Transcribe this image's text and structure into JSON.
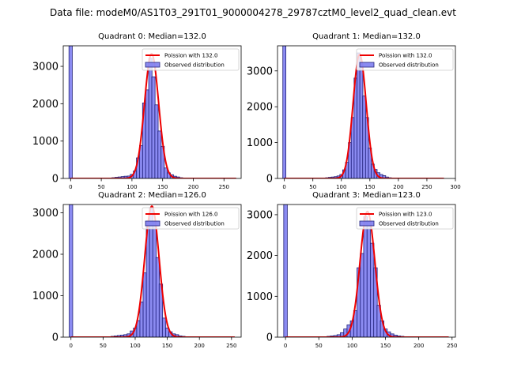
{
  "suptitle": "Data file: modeM0/AS1T03_291T01_9000004278_29787cztM0_level2_quad_clean.evt",
  "colors": {
    "hist_fill": "#7777ee",
    "hist_edge": "#22227a",
    "curve": "#ee0000"
  },
  "chart_data": [
    {
      "type": "bar",
      "title": "Quadrant 0: Median=132.0",
      "median": 132.0,
      "xlim": [
        -12,
        278
      ],
      "ylim": [
        0,
        3550
      ],
      "xticks": [
        0,
        50,
        100,
        150,
        200,
        250
      ],
      "yticks": [
        0,
        1000,
        2000,
        3000
      ],
      "legend": {
        "position": "top-right",
        "curve_label": "Poission with 132.0",
        "hist_label": "Observed distribution"
      },
      "bin_width": 5.4,
      "bins": [
        {
          "x": 0,
          "count": 3550
        },
        {
          "x": 70,
          "count": 20
        },
        {
          "x": 75,
          "count": 30
        },
        {
          "x": 80,
          "count": 40
        },
        {
          "x": 85,
          "count": 50
        },
        {
          "x": 90,
          "count": 60
        },
        {
          "x": 95,
          "count": 65
        },
        {
          "x": 100,
          "count": 110
        },
        {
          "x": 105,
          "count": 200
        },
        {
          "x": 110,
          "count": 550
        },
        {
          "x": 115,
          "count": 880
        },
        {
          "x": 120,
          "count": 2020
        },
        {
          "x": 125,
          "count": 2370
        },
        {
          "x": 130,
          "count": 3210
        },
        {
          "x": 135,
          "count": 2720
        },
        {
          "x": 140,
          "count": 1970
        },
        {
          "x": 145,
          "count": 1270
        },
        {
          "x": 150,
          "count": 860
        },
        {
          "x": 155,
          "count": 280
        },
        {
          "x": 160,
          "count": 150
        },
        {
          "x": 165,
          "count": 100
        },
        {
          "x": 170,
          "count": 60
        },
        {
          "x": 175,
          "count": 40
        },
        {
          "x": 180,
          "count": 20
        },
        {
          "x": 185,
          "count": 10
        }
      ],
      "curve": {
        "mu": 132.0,
        "peak": 3340,
        "x_range": [
          0,
          270
        ]
      }
    },
    {
      "type": "bar",
      "title": "Quadrant 1: Median=132.0",
      "median": 132.0,
      "xlim": [
        -12,
        300
      ],
      "ylim": [
        0,
        3700
      ],
      "xticks": [
        0,
        50,
        100,
        150,
        200,
        250,
        300
      ],
      "yticks": [
        0,
        1000,
        2000,
        3000
      ],
      "legend": {
        "position": "top-right",
        "curve_label": "Poission with 132.0",
        "hist_label": "Observed distribution"
      },
      "bin_width": 5.4,
      "bins": [
        {
          "x": 0,
          "count": 3700
        },
        {
          "x": 75,
          "count": 20
        },
        {
          "x": 80,
          "count": 30
        },
        {
          "x": 85,
          "count": 40
        },
        {
          "x": 90,
          "count": 50
        },
        {
          "x": 95,
          "count": 70
        },
        {
          "x": 100,
          "count": 110
        },
        {
          "x": 105,
          "count": 240
        },
        {
          "x": 110,
          "count": 450
        },
        {
          "x": 115,
          "count": 1000
        },
        {
          "x": 120,
          "count": 1700
        },
        {
          "x": 125,
          "count": 2800
        },
        {
          "x": 130,
          "count": 3500
        },
        {
          "x": 135,
          "count": 3200
        },
        {
          "x": 140,
          "count": 2300
        },
        {
          "x": 145,
          "count": 1700
        },
        {
          "x": 150,
          "count": 850
        },
        {
          "x": 155,
          "count": 400
        },
        {
          "x": 160,
          "count": 250
        },
        {
          "x": 165,
          "count": 160
        },
        {
          "x": 170,
          "count": 110
        },
        {
          "x": 175,
          "count": 80
        },
        {
          "x": 180,
          "count": 40
        },
        {
          "x": 185,
          "count": 20
        }
      ],
      "curve": {
        "mu": 132.0,
        "peak": 3460,
        "x_range": [
          0,
          280
        ]
      }
    },
    {
      "type": "bar",
      "title": "Quadrant 2: Median=126.0",
      "median": 126.0,
      "xlim": [
        -12,
        265
      ],
      "ylim": [
        0,
        3200
      ],
      "xticks": [
        0,
        50,
        100,
        150,
        200,
        250
      ],
      "yticks": [
        0,
        1000,
        2000,
        3000
      ],
      "legend": {
        "position": "top-right",
        "curve_label": "Poission with 126.0",
        "hist_label": "Observed distribution"
      },
      "bin_width": 5.4,
      "bins": [
        {
          "x": 0,
          "count": 3200
        },
        {
          "x": 65,
          "count": 20
        },
        {
          "x": 70,
          "count": 30
        },
        {
          "x": 75,
          "count": 40
        },
        {
          "x": 80,
          "count": 50
        },
        {
          "x": 85,
          "count": 60
        },
        {
          "x": 90,
          "count": 80
        },
        {
          "x": 95,
          "count": 150
        },
        {
          "x": 100,
          "count": 220
        },
        {
          "x": 105,
          "count": 400
        },
        {
          "x": 110,
          "count": 850
        },
        {
          "x": 115,
          "count": 1550
        },
        {
          "x": 120,
          "count": 2800
        },
        {
          "x": 125,
          "count": 3120
        },
        {
          "x": 130,
          "count": 2800
        },
        {
          "x": 135,
          "count": 1920
        },
        {
          "x": 140,
          "count": 1280
        },
        {
          "x": 145,
          "count": 460
        },
        {
          "x": 150,
          "count": 220
        },
        {
          "x": 155,
          "count": 130
        },
        {
          "x": 160,
          "count": 80
        },
        {
          "x": 165,
          "count": 60
        },
        {
          "x": 170,
          "count": 30
        },
        {
          "x": 175,
          "count": 20
        }
      ],
      "curve": {
        "mu": 126.0,
        "peak": 3160,
        "x_range": [
          0,
          255
        ]
      }
    },
    {
      "type": "bar",
      "title": "Quadrant 3: Median=123.0",
      "median": 123.0,
      "xlim": [
        -12,
        255
      ],
      "ylim": [
        0,
        3250
      ],
      "xticks": [
        0,
        50,
        100,
        150,
        200,
        250
      ],
      "yticks": [
        0,
        1000,
        2000,
        3000
      ],
      "legend": {
        "position": "top-right",
        "curve_label": "Poission with 123.0",
        "hist_label": "Observed distribution"
      },
      "bin_width": 5.4,
      "bins": [
        {
          "x": 0,
          "count": 3250
        },
        {
          "x": 65,
          "count": 20
        },
        {
          "x": 70,
          "count": 30
        },
        {
          "x": 75,
          "count": 40
        },
        {
          "x": 80,
          "count": 60
        },
        {
          "x": 85,
          "count": 110
        },
        {
          "x": 90,
          "count": 200
        },
        {
          "x": 95,
          "count": 300
        },
        {
          "x": 100,
          "count": 400
        },
        {
          "x": 105,
          "count": 650
        },
        {
          "x": 110,
          "count": 1700
        },
        {
          "x": 115,
          "count": 2050
        },
        {
          "x": 120,
          "count": 2950
        },
        {
          "x": 125,
          "count": 2850
        },
        {
          "x": 130,
          "count": 2300
        },
        {
          "x": 135,
          "count": 1700
        },
        {
          "x": 140,
          "count": 780
        },
        {
          "x": 145,
          "count": 400
        },
        {
          "x": 150,
          "count": 200
        },
        {
          "x": 155,
          "count": 130
        },
        {
          "x": 160,
          "count": 80
        },
        {
          "x": 165,
          "count": 50
        },
        {
          "x": 170,
          "count": 30
        },
        {
          "x": 175,
          "count": 20
        }
      ],
      "curve": {
        "mu": 123.0,
        "peak": 3080,
        "x_range": [
          0,
          245
        ]
      }
    }
  ]
}
